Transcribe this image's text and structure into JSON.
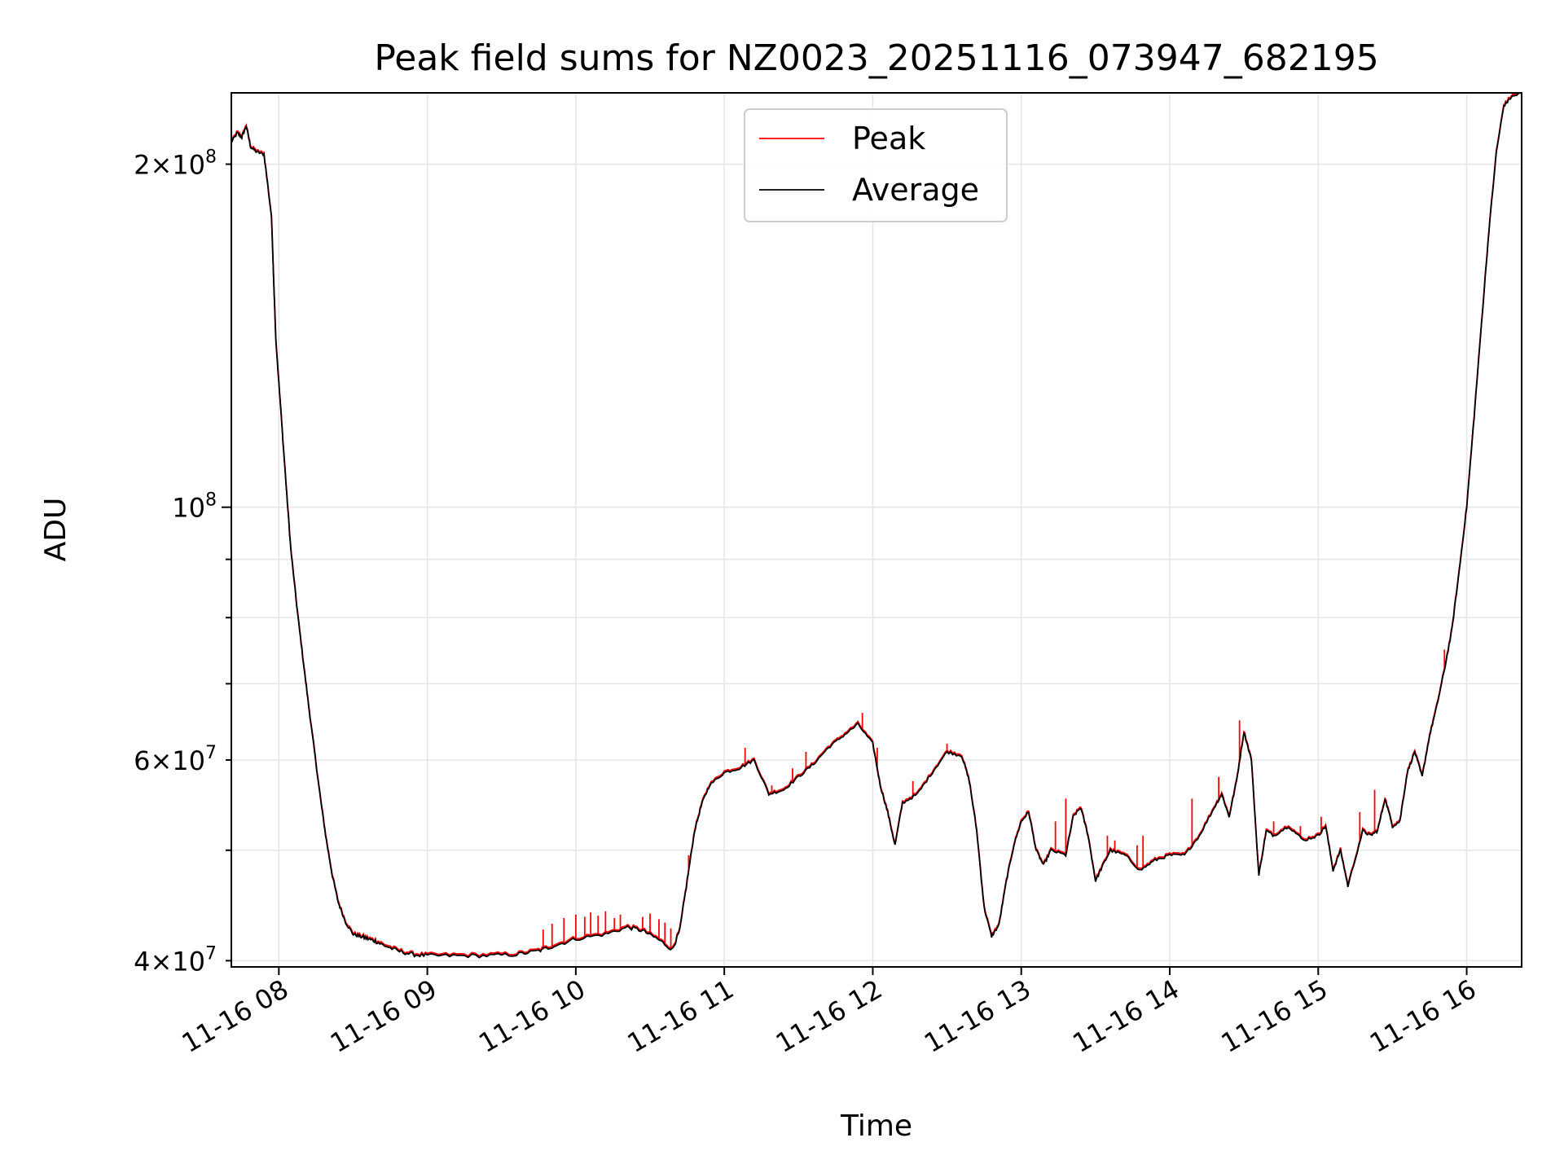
{
  "chart_data": {
    "type": "line",
    "title": "Peak field sums for NZ0023_20251116_073947_682195",
    "xlabel": "Time",
    "ylabel": "ADU",
    "yscale": "log",
    "xlim": [
      7.68,
      16.37
    ],
    "ylim": [
      39500000,
      231000000
    ],
    "grid": true,
    "legend_position": "top-center",
    "x_ticks": [
      {
        "value": 8,
        "label": "11-16 08"
      },
      {
        "value": 9,
        "label": "11-16 09"
      },
      {
        "value": 10,
        "label": "11-16 10"
      },
      {
        "value": 11,
        "label": "11-16 11"
      },
      {
        "value": 12,
        "label": "11-16 12"
      },
      {
        "value": 13,
        "label": "11-16 13"
      },
      {
        "value": 14,
        "label": "11-16 14"
      },
      {
        "value": 15,
        "label": "11-16 15"
      },
      {
        "value": 16,
        "label": "11-16 16"
      }
    ],
    "y_major_ticks": [
      {
        "value": 100000000,
        "mantissa": "",
        "base": "10",
        "exp": "8"
      }
    ],
    "y_minor_ticks": [
      {
        "value": 40000000,
        "mantissa": "4",
        "base": "10",
        "exp": "7"
      },
      {
        "value": 60000000,
        "mantissa": "6",
        "base": "10",
        "exp": "7"
      },
      {
        "value": 200000000,
        "mantissa": "2",
        "base": "10",
        "exp": "8"
      }
    ],
    "y_minor_unlabeled": [
      50000000,
      70000000,
      80000000,
      90000000
    ],
    "series": [
      {
        "name": "Peak",
        "color": "#ff0000"
      },
      {
        "name": "Average",
        "color": "#000000"
      }
    ],
    "x_hours": [
      7.68,
      7.72,
      7.75,
      7.78,
      7.81,
      7.85,
      7.9,
      7.95,
      7.98,
      8.02,
      8.05,
      8.08,
      8.12,
      8.16,
      8.2,
      8.24,
      8.28,
      8.32,
      8.36,
      8.4,
      8.45,
      8.5,
      8.55,
      8.6,
      8.65,
      8.7,
      8.8,
      8.9,
      9.0,
      9.2,
      9.4,
      9.6,
      9.75,
      9.85,
      10.0,
      10.2,
      10.35,
      10.45,
      10.55,
      10.65,
      10.7,
      10.75,
      10.8,
      10.85,
      10.9,
      11.0,
      11.1,
      11.2,
      11.3,
      11.4,
      11.5,
      11.6,
      11.7,
      11.8,
      11.9,
      12.0,
      12.05,
      12.1,
      12.15,
      12.2,
      12.3,
      12.4,
      12.5,
      12.6,
      12.65,
      12.7,
      12.75,
      12.8,
      12.85,
      12.9,
      12.95,
      13.0,
      13.05,
      13.1,
      13.15,
      13.2,
      13.3,
      13.35,
      13.4,
      13.45,
      13.5,
      13.55,
      13.6,
      13.7,
      13.8,
      13.9,
      14.0,
      14.1,
      14.2,
      14.3,
      14.35,
      14.4,
      14.45,
      14.5,
      14.55,
      14.6,
      14.65,
      14.7,
      14.8,
      14.9,
      15.0,
      15.05,
      15.1,
      15.15,
      15.2,
      15.3,
      15.35,
      15.4,
      15.45,
      15.5,
      15.55,
      15.6,
      15.65,
      15.7,
      15.75,
      15.8,
      15.85,
      15.9,
      15.95,
      16.0,
      16.05,
      16.1,
      16.15,
      16.2,
      16.25,
      16.3,
      16.37
    ],
    "average_values": [
      209000000,
      213000000,
      211000000,
      216000000,
      207000000,
      205000000,
      204000000,
      180000000,
      140000000,
      118000000,
      104000000,
      92000000,
      82000000,
      74000000,
      67000000,
      61000000,
      55500000,
      51000000,
      47500000,
      45000000,
      43200000,
      42200000,
      42000000,
      41800000,
      41600000,
      41300000,
      40800000,
      40500000,
      40400000,
      40400000,
      40400000,
      40500000,
      40800000,
      41200000,
      41800000,
      42200000,
      42800000,
      42500000,
      41800000,
      40900000,
      42500000,
      47000000,
      52000000,
      55000000,
      57000000,
      58500000,
      59000000,
      60000000,
      56000000,
      56500000,
      58000000,
      59500000,
      61500000,
      63000000,
      64500000,
      62000000,
      57000000,
      54000000,
      50500000,
      55000000,
      56000000,
      58500000,
      61000000,
      60500000,
      57500000,
      52000000,
      44500000,
      42000000,
      43000000,
      47000000,
      50500000,
      53000000,
      54000000,
      50000000,
      48500000,
      50000000,
      49500000,
      53500000,
      54500000,
      51500000,
      47000000,
      48500000,
      50000000,
      49500000,
      48000000,
      49000000,
      49500000,
      49500000,
      51500000,
      54500000,
      56000000,
      53500000,
      57500000,
      63500000,
      60000000,
      47500000,
      52000000,
      51500000,
      52500000,
      51000000,
      51500000,
      52500000,
      48000000,
      50000000,
      46500000,
      52000000,
      51500000,
      52000000,
      55500000,
      52500000,
      53000000,
      58500000,
      61000000,
      58000000,
      63000000,
      67000000,
      72000000,
      78000000,
      88000000,
      100000000,
      120000000,
      145000000,
      175000000,
      205000000,
      225000000,
      229000000,
      231000000
    ],
    "peak_spikes": [
      {
        "x": 9.78,
        "value": 42600000
      },
      {
        "x": 9.84,
        "value": 43100000
      },
      {
        "x": 9.92,
        "value": 43600000
      },
      {
        "x": 10.0,
        "value": 43900000
      },
      {
        "x": 10.06,
        "value": 43700000
      },
      {
        "x": 10.1,
        "value": 44100000
      },
      {
        "x": 10.15,
        "value": 43800000
      },
      {
        "x": 10.2,
        "value": 44200000
      },
      {
        "x": 10.26,
        "value": 43600000
      },
      {
        "x": 10.3,
        "value": 43900000
      },
      {
        "x": 10.45,
        "value": 43700000
      },
      {
        "x": 10.5,
        "value": 44000000
      },
      {
        "x": 10.56,
        "value": 43500000
      },
      {
        "x": 10.6,
        "value": 43200000
      },
      {
        "x": 10.64,
        "value": 42700000
      },
      {
        "x": 10.76,
        "value": 49500000
      },
      {
        "x": 11.14,
        "value": 61500000
      },
      {
        "x": 11.32,
        "value": 57000000
      },
      {
        "x": 11.46,
        "value": 59000000
      },
      {
        "x": 11.55,
        "value": 61000000
      },
      {
        "x": 11.93,
        "value": 66000000
      },
      {
        "x": 12.03,
        "value": 61500000
      },
      {
        "x": 12.27,
        "value": 57500000
      },
      {
        "x": 12.5,
        "value": 62000000
      },
      {
        "x": 13.23,
        "value": 53000000
      },
      {
        "x": 13.3,
        "value": 55500000
      },
      {
        "x": 13.58,
        "value": 51500000
      },
      {
        "x": 13.63,
        "value": 51000000
      },
      {
        "x": 13.78,
        "value": 50500000
      },
      {
        "x": 13.82,
        "value": 51500000
      },
      {
        "x": 14.15,
        "value": 55500000
      },
      {
        "x": 14.33,
        "value": 58000000
      },
      {
        "x": 14.47,
        "value": 65000000
      },
      {
        "x": 14.7,
        "value": 53000000
      },
      {
        "x": 14.88,
        "value": 52500000
      },
      {
        "x": 15.02,
        "value": 53500000
      },
      {
        "x": 15.28,
        "value": 54000000
      },
      {
        "x": 15.38,
        "value": 56500000
      },
      {
        "x": 15.85,
        "value": 75000000
      }
    ]
  }
}
